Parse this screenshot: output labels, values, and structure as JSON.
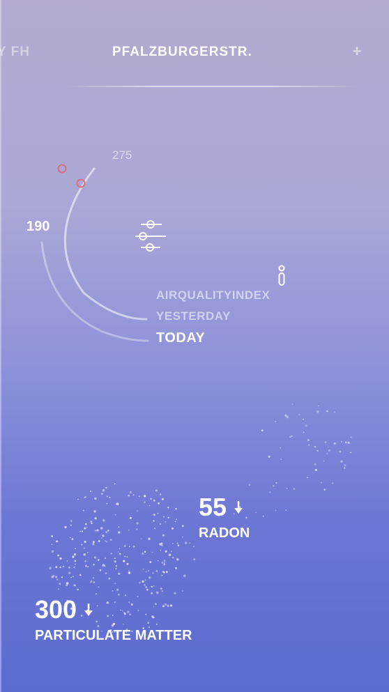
{
  "header": {
    "tabs": [
      {
        "label": "Y FH",
        "state": "inactive"
      },
      {
        "label": "PFALZBURGERSTR.",
        "state": "active"
      }
    ],
    "add_label": "+"
  },
  "gauge": {
    "scale_top": "275",
    "scale_left": "190"
  },
  "legend": {
    "airqualityindex": "AIRQUALITYINDEX",
    "yesterday": "YESTERDAY",
    "today": "TODAY"
  },
  "metrics": {
    "radon": {
      "value": "55",
      "label": "RADON",
      "trend": "down"
    },
    "particulate_matter": {
      "value": "300",
      "label": "PARTICULATE MATTER",
      "trend": "down"
    }
  },
  "icons": {
    "filter": "sliders-icon",
    "info": "info-icon",
    "trend": "arrow-down-icon"
  },
  "colors": {
    "marker": "#d9707a",
    "text": "#ffffff"
  }
}
